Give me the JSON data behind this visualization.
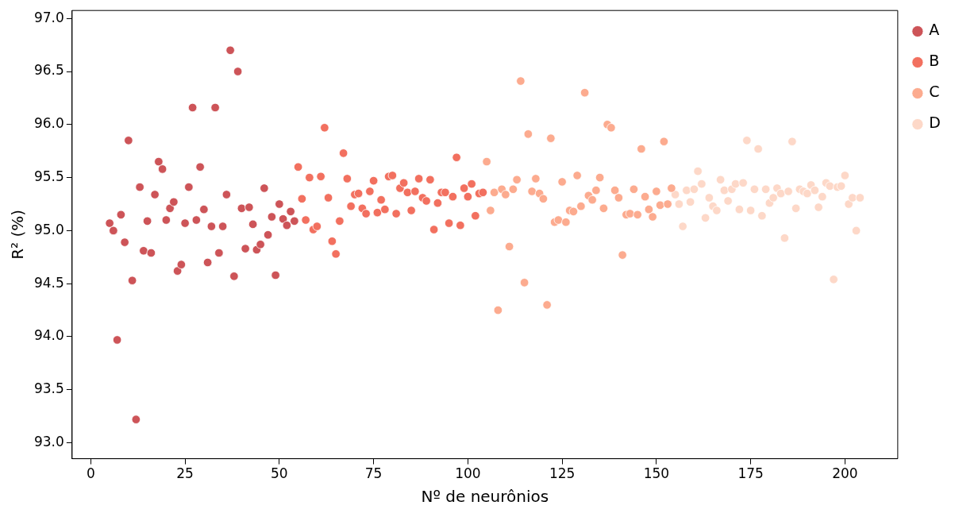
{
  "chart_data": {
    "type": "scatter",
    "xlabel": "Nº de neurônios",
    "ylabel": "R² (%)",
    "xlim": [
      -4.95,
      214
    ],
    "xticks": [
      0,
      25,
      50,
      75,
      100,
      125,
      150,
      175,
      200
    ],
    "ylim": [
      92.85,
      97.075
    ],
    "yticks": [
      {
        "value": 93,
        "label": "93.0"
      },
      {
        "value": 93.5,
        "label": "93.5"
      },
      {
        "value": 94,
        "label": "94.0"
      },
      {
        "value": 94.5,
        "label": "94.5"
      },
      {
        "value": 95,
        "label": "95.0"
      },
      {
        "value": 95.5,
        "label": "95.5"
      },
      {
        "value": 96,
        "label": "96.0"
      },
      {
        "value": 96.5,
        "label": "96.5"
      },
      {
        "value": 97,
        "label": "97.0"
      }
    ],
    "grid": false,
    "legend": "top right",
    "marker": "circle",
    "series": [
      {
        "name": "A",
        "color": "#cd5458",
        "x": [
          5,
          6,
          7,
          8,
          9,
          10,
          11,
          12,
          13,
          14,
          15,
          16,
          17,
          18,
          19,
          20,
          21,
          22,
          23,
          24,
          25,
          26,
          27,
          28,
          29,
          30,
          31,
          32,
          33,
          34,
          35,
          36,
          37,
          38,
          39,
          40,
          41,
          42,
          43,
          44,
          45,
          46,
          47,
          48,
          49,
          50,
          51,
          52,
          53,
          54
        ],
        "values": [
          95.07,
          95.0,
          93.97,
          95.15,
          94.89,
          95.85,
          94.53,
          93.22,
          95.41,
          94.81,
          95.09,
          94.79,
          95.34,
          95.65,
          95.58,
          95.1,
          95.21,
          95.27,
          94.62,
          94.68,
          95.07,
          95.41,
          96.16,
          95.1,
          95.6,
          95.2,
          94.7,
          95.04,
          96.16,
          94.79,
          95.04,
          95.34,
          96.7,
          94.57,
          96.5,
          95.21,
          94.83,
          95.22,
          95.06,
          94.82,
          94.87,
          95.4,
          94.96,
          95.13,
          94.58,
          95.25,
          95.11,
          95.05,
          95.18,
          95.09
        ]
      },
      {
        "name": "B",
        "color": "#f2705f",
        "x": [
          55,
          56,
          57,
          58,
          59,
          60,
          61,
          62,
          63,
          64,
          65,
          66,
          67,
          68,
          69,
          70,
          71,
          72,
          73,
          74,
          75,
          76,
          77,
          78,
          79,
          80,
          81,
          82,
          83,
          84,
          85,
          86,
          87,
          88,
          89,
          90,
          91,
          92,
          93,
          94,
          95,
          96,
          97,
          98,
          99,
          100,
          101,
          102,
          103,
          104
        ],
        "values": [
          95.6,
          95.3,
          95.1,
          95.5,
          95.01,
          95.04,
          95.51,
          95.97,
          95.31,
          94.9,
          94.78,
          95.09,
          95.73,
          95.49,
          95.23,
          95.34,
          95.35,
          95.21,
          95.16,
          95.37,
          95.47,
          95.17,
          95.29,
          95.2,
          95.51,
          95.52,
          95.16,
          95.4,
          95.45,
          95.36,
          95.19,
          95.37,
          95.49,
          95.31,
          95.28,
          95.48,
          95.01,
          95.26,
          95.36,
          95.36,
          95.07,
          95.32,
          95.69,
          95.05,
          95.4,
          95.32,
          95.44,
          95.14,
          95.35,
          95.36
        ]
      },
      {
        "name": "C",
        "color": "#fcab8f",
        "x": [
          105,
          106,
          107,
          108,
          109,
          110,
          111,
          112,
          113,
          114,
          115,
          116,
          117,
          118,
          119,
          120,
          121,
          122,
          123,
          124,
          125,
          126,
          127,
          128,
          129,
          130,
          131,
          132,
          133,
          134,
          135,
          136,
          137,
          138,
          139,
          140,
          141,
          142,
          143,
          144,
          145,
          146,
          147,
          148,
          149,
          150,
          151,
          152,
          153,
          154
        ],
        "values": [
          95.65,
          95.19,
          95.36,
          94.25,
          95.39,
          95.34,
          94.85,
          95.39,
          95.48,
          96.41,
          94.51,
          95.91,
          95.37,
          95.49,
          95.35,
          95.3,
          94.3,
          95.87,
          95.08,
          95.1,
          95.46,
          95.08,
          95.19,
          95.18,
          95.52,
          95.23,
          96.3,
          95.33,
          95.29,
          95.38,
          95.5,
          95.21,
          96.0,
          95.97,
          95.38,
          95.31,
          94.77,
          95.15,
          95.16,
          95.39,
          95.15,
          95.77,
          95.32,
          95.2,
          95.13,
          95.37,
          95.24,
          95.84,
          95.25,
          95.4
        ]
      },
      {
        "name": "D",
        "color": "#fdd8c8",
        "x": [
          155,
          156,
          157,
          158,
          159,
          160,
          161,
          162,
          163,
          164,
          165,
          166,
          167,
          168,
          169,
          170,
          171,
          172,
          173,
          174,
          175,
          176,
          177,
          178,
          179,
          180,
          181,
          182,
          183,
          184,
          185,
          186,
          187,
          188,
          189,
          190,
          191,
          192,
          193,
          194,
          195,
          196,
          197,
          198,
          199,
          200,
          201,
          202,
          203,
          204
        ],
        "values": [
          95.34,
          95.25,
          95.04,
          95.38,
          95.27,
          95.39,
          95.56,
          95.44,
          95.12,
          95.31,
          95.23,
          95.19,
          95.48,
          95.38,
          95.28,
          95.39,
          95.44,
          95.2,
          95.45,
          95.85,
          95.19,
          95.39,
          95.77,
          95.14,
          95.39,
          95.26,
          95.31,
          95.4,
          95.35,
          94.93,
          95.37,
          95.84,
          95.21,
          95.39,
          95.37,
          95.35,
          95.43,
          95.38,
          95.22,
          95.32,
          95.45,
          95.42,
          94.54,
          95.41,
          95.42,
          95.52,
          95.25,
          95.31,
          95.0,
          95.31
        ]
      }
    ]
  }
}
